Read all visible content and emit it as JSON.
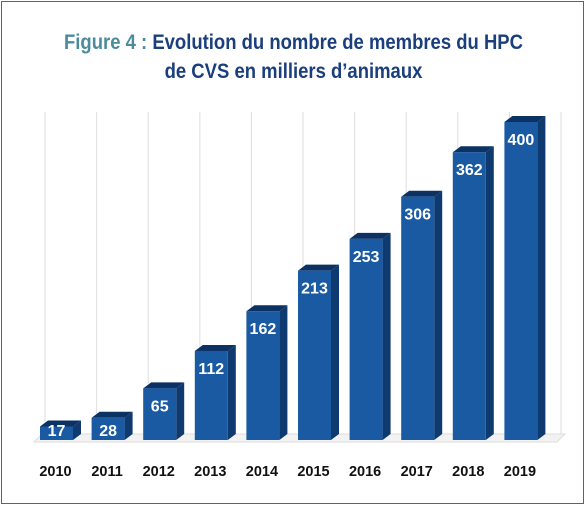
{
  "chart_data": {
    "type": "bar",
    "title_prefix": "Figure 4 :",
    "title_line1": "Evolution du nombre de membres du HPC",
    "title_line2": "de CVS en milliers d’animaux",
    "categories": [
      "2010",
      "2011",
      "2012",
      "2013",
      "2014",
      "2015",
      "2016",
      "2017",
      "2018",
      "2019"
    ],
    "values": [
      17,
      28,
      65,
      112,
      162,
      213,
      253,
      306,
      362,
      400
    ],
    "data_labels": [
      "17",
      "28",
      "65",
      "112",
      "162",
      "213",
      "253",
      "306",
      "362",
      "400"
    ],
    "xlabel": "",
    "ylabel": "",
    "ylim": [
      0,
      400
    ],
    "grid": "vertical",
    "legend": "none",
    "colors": {
      "bar_front": "#1a5aa3",
      "bar_side": "#0f3a70",
      "bar_top": "#0c3163",
      "frame": "#3f6f7c",
      "title_prefix": "#4a8b9e",
      "title": "#1b3f7d"
    }
  }
}
